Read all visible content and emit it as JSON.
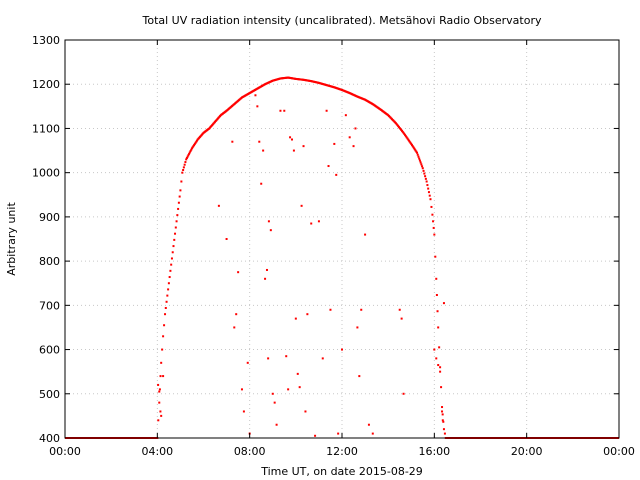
{
  "chart_data": {
    "type": "scatter",
    "title": "Total UV radiation intensity (uncalibrated). Metsähovi Radio Observatory",
    "xlabel": "Time UT, on date 2015-08-29",
    "ylabel": "Arbitrary unit",
    "xlim": [
      "00:00",
      "24:00"
    ],
    "ylim": [
      400,
      1300
    ],
    "xticks": [
      "00:00",
      "04:00",
      "08:00",
      "12:00",
      "16:00",
      "20:00",
      "00:00"
    ],
    "yticks": [
      400,
      500,
      600,
      700,
      800,
      900,
      1000,
      1100,
      1200,
      1300
    ],
    "grid": true,
    "legend": "none",
    "marker_color": "#ff0000",
    "series": [
      {
        "baseline_segments": [
          [
            "00:00",
            "04:00",
            400
          ],
          [
            "16:30",
            "24:00",
            400
          ]
        ],
        "envelope": [
          [
            "04:00",
            400
          ],
          [
            "04:05",
            480
          ],
          [
            "04:10",
            570
          ],
          [
            "04:15",
            630
          ],
          [
            "04:20",
            680
          ],
          [
            "04:30",
            750
          ],
          [
            "04:40",
            820
          ],
          [
            "04:50",
            890
          ],
          [
            "05:00",
            960
          ],
          [
            "05:05",
            1000
          ],
          [
            "05:15",
            1030
          ],
          [
            "05:30",
            1055
          ],
          [
            "05:45",
            1075
          ],
          [
            "06:00",
            1090
          ],
          [
            "06:15",
            1100
          ],
          [
            "06:30",
            1115
          ],
          [
            "06:45",
            1130
          ],
          [
            "07:00",
            1140
          ],
          [
            "07:20",
            1155
          ],
          [
            "07:40",
            1170
          ],
          [
            "08:00",
            1180
          ],
          [
            "08:20",
            1190
          ],
          [
            "08:40",
            1200
          ],
          [
            "09:00",
            1208
          ],
          [
            "09:20",
            1213
          ],
          [
            "09:40",
            1215
          ],
          [
            "10:00",
            1212
          ],
          [
            "10:20",
            1210
          ],
          [
            "10:40",
            1207
          ],
          [
            "11:00",
            1203
          ],
          [
            "11:20",
            1198
          ],
          [
            "11:40",
            1193
          ],
          [
            "12:00",
            1187
          ],
          [
            "12:20",
            1180
          ],
          [
            "12:40",
            1172
          ],
          [
            "13:00",
            1165
          ],
          [
            "13:20",
            1155
          ],
          [
            "13:40",
            1143
          ],
          [
            "14:00",
            1130
          ],
          [
            "14:20",
            1112
          ],
          [
            "14:40",
            1090
          ],
          [
            "15:00",
            1065
          ],
          [
            "15:15",
            1045
          ],
          [
            "15:30",
            1010
          ],
          [
            "15:40",
            980
          ],
          [
            "15:50",
            940
          ],
          [
            "15:55",
            905
          ],
          [
            "16:00",
            860
          ],
          [
            "16:05",
            760
          ],
          [
            "16:10",
            650
          ],
          [
            "16:15",
            560
          ],
          [
            "16:20",
            470
          ],
          [
            "16:25",
            420
          ],
          [
            "16:30",
            400
          ]
        ],
        "scatter_points": [
          [
            "04:02",
            520
          ],
          [
            "04:05",
            505
          ],
          [
            "04:08",
            460
          ],
          [
            "04:10",
            450
          ],
          [
            "04:15",
            540
          ],
          [
            "06:40",
            925
          ],
          [
            "07:00",
            850
          ],
          [
            "07:15",
            1070
          ],
          [
            "07:20",
            650
          ],
          [
            "07:25",
            680
          ],
          [
            "07:30",
            775
          ],
          [
            "07:40",
            510
          ],
          [
            "07:45",
            460
          ],
          [
            "07:55",
            570
          ],
          [
            "08:00",
            410
          ],
          [
            "08:15",
            1175
          ],
          [
            "08:20",
            1150
          ],
          [
            "08:25",
            1070
          ],
          [
            "08:30",
            975
          ],
          [
            "08:35",
            1050
          ],
          [
            "08:40",
            760
          ],
          [
            "08:45",
            780
          ],
          [
            "08:48",
            580
          ],
          [
            "08:50",
            890
          ],
          [
            "08:55",
            870
          ],
          [
            "09:00",
            500
          ],
          [
            "09:05",
            480
          ],
          [
            "09:10",
            430
          ],
          [
            "09:20",
            1140
          ],
          [
            "09:30",
            1140
          ],
          [
            "09:35",
            585
          ],
          [
            "09:40",
            510
          ],
          [
            "09:45",
            1080
          ],
          [
            "09:50",
            1075
          ],
          [
            "09:55",
            1050
          ],
          [
            "10:00",
            670
          ],
          [
            "10:05",
            545
          ],
          [
            "10:10",
            515
          ],
          [
            "10:15",
            925
          ],
          [
            "10:20",
            1060
          ],
          [
            "10:25",
            460
          ],
          [
            "10:30",
            680
          ],
          [
            "10:40",
            885
          ],
          [
            "10:50",
            405
          ],
          [
            "11:00",
            890
          ],
          [
            "11:10",
            580
          ],
          [
            "11:20",
            1140
          ],
          [
            "11:25",
            1015
          ],
          [
            "11:30",
            690
          ],
          [
            "11:40",
            1065
          ],
          [
            "11:45",
            995
          ],
          [
            "11:50",
            410
          ],
          [
            "12:00",
            600
          ],
          [
            "12:10",
            1130
          ],
          [
            "12:20",
            1080
          ],
          [
            "12:30",
            1060
          ],
          [
            "12:35",
            1100
          ],
          [
            "12:40",
            650
          ],
          [
            "12:45",
            540
          ],
          [
            "12:50",
            690
          ],
          [
            "13:00",
            860
          ],
          [
            "13:10",
            430
          ],
          [
            "13:20",
            410
          ],
          [
            "14:30",
            690
          ],
          [
            "14:35",
            670
          ],
          [
            "14:40",
            500
          ],
          [
            "16:00",
            600
          ],
          [
            "16:05",
            580
          ],
          [
            "16:10",
            565
          ],
          [
            "16:15",
            550
          ],
          [
            "16:20",
            460
          ],
          [
            "16:22",
            440
          ],
          [
            "16:25",
            705
          ],
          [
            "16:30",
            400
          ]
        ]
      }
    ]
  }
}
